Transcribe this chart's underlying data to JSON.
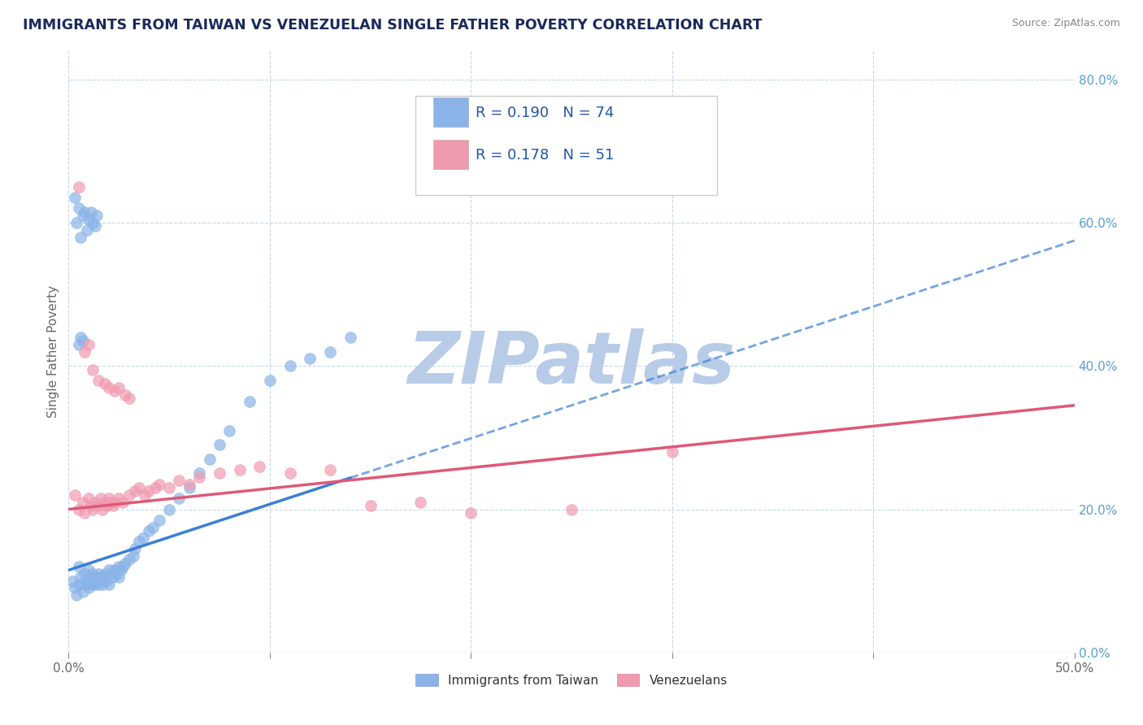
{
  "title": "IMMIGRANTS FROM TAIWAN VS VENEZUELAN SINGLE FATHER POVERTY CORRELATION CHART",
  "source": "Source: ZipAtlas.com",
  "ylabel": "Single Father Poverty",
  "xlim": [
    0.0,
    0.5
  ],
  "ylim": [
    0.0,
    0.84
  ],
  "xticks": [
    0.0,
    0.1,
    0.2,
    0.3,
    0.4,
    0.5
  ],
  "xtick_labels": [
    "0.0%",
    "",
    "",
    "",
    "",
    "50.0%"
  ],
  "yticks_right": [
    0.0,
    0.2,
    0.4,
    0.6,
    0.8
  ],
  "ytick_labels_right": [
    "0.0%",
    "20.0%",
    "40.0%",
    "60.0%",
    "80.0%"
  ],
  "taiwan_color": "#8ab4e8",
  "venezuela_color": "#f09ab0",
  "taiwan_line_color": "#3a7fd4",
  "venezuela_line_color": "#e05878",
  "watermark": "ZIPatlas",
  "watermark_color": "#b8cce8",
  "legend_label_taiwan": "Immigrants from Taiwan",
  "legend_label_venezuela": "Venezuelans",
  "background_color": "#ffffff",
  "grid_color": "#c8d8ec",
  "title_color": "#1a2a5a",
  "taiwan_R": "0.190",
  "taiwan_N": "74",
  "venezuela_R": "0.178",
  "venezuela_N": "51",
  "taiwan_scatter_x": [
    0.002,
    0.003,
    0.004,
    0.005,
    0.005,
    0.006,
    0.007,
    0.008,
    0.008,
    0.009,
    0.01,
    0.01,
    0.01,
    0.011,
    0.012,
    0.012,
    0.013,
    0.013,
    0.014,
    0.015,
    0.015,
    0.015,
    0.016,
    0.017,
    0.018,
    0.018,
    0.019,
    0.02,
    0.02,
    0.021,
    0.022,
    0.023,
    0.024,
    0.025,
    0.025,
    0.026,
    0.027,
    0.028,
    0.03,
    0.032,
    0.033,
    0.035,
    0.037,
    0.04,
    0.042,
    0.045,
    0.05,
    0.055,
    0.06,
    0.065,
    0.07,
    0.075,
    0.08,
    0.09,
    0.1,
    0.11,
    0.12,
    0.13,
    0.14,
    0.003,
    0.004,
    0.005,
    0.006,
    0.007,
    0.008,
    0.009,
    0.01,
    0.011,
    0.012,
    0.013,
    0.014,
    0.005,
    0.006,
    0.007
  ],
  "taiwan_scatter_y": [
    0.1,
    0.09,
    0.08,
    0.12,
    0.095,
    0.105,
    0.085,
    0.11,
    0.095,
    0.1,
    0.115,
    0.09,
    0.095,
    0.105,
    0.095,
    0.11,
    0.1,
    0.095,
    0.105,
    0.11,
    0.095,
    0.1,
    0.105,
    0.095,
    0.105,
    0.11,
    0.1,
    0.115,
    0.095,
    0.11,
    0.105,
    0.115,
    0.11,
    0.12,
    0.105,
    0.115,
    0.12,
    0.125,
    0.13,
    0.135,
    0.145,
    0.155,
    0.16,
    0.17,
    0.175,
    0.185,
    0.2,
    0.215,
    0.23,
    0.25,
    0.27,
    0.29,
    0.31,
    0.35,
    0.38,
    0.4,
    0.41,
    0.42,
    0.44,
    0.635,
    0.6,
    0.62,
    0.58,
    0.61,
    0.615,
    0.59,
    0.605,
    0.615,
    0.6,
    0.595,
    0.61,
    0.43,
    0.44,
    0.435
  ],
  "venezuela_scatter_x": [
    0.003,
    0.005,
    0.007,
    0.008,
    0.01,
    0.011,
    0.012,
    0.013,
    0.015,
    0.016,
    0.017,
    0.018,
    0.019,
    0.02,
    0.021,
    0.022,
    0.023,
    0.025,
    0.027,
    0.03,
    0.033,
    0.035,
    0.038,
    0.04,
    0.043,
    0.045,
    0.05,
    0.055,
    0.06,
    0.065,
    0.075,
    0.085,
    0.095,
    0.11,
    0.13,
    0.15,
    0.175,
    0.2,
    0.25,
    0.3,
    0.005,
    0.008,
    0.01,
    0.012,
    0.015,
    0.018,
    0.02,
    0.023,
    0.025,
    0.028,
    0.03
  ],
  "venezuela_scatter_y": [
    0.22,
    0.2,
    0.21,
    0.195,
    0.215,
    0.205,
    0.2,
    0.21,
    0.205,
    0.215,
    0.2,
    0.21,
    0.205,
    0.215,
    0.21,
    0.205,
    0.21,
    0.215,
    0.21,
    0.22,
    0.225,
    0.23,
    0.22,
    0.225,
    0.23,
    0.235,
    0.23,
    0.24,
    0.235,
    0.245,
    0.25,
    0.255,
    0.26,
    0.25,
    0.255,
    0.205,
    0.21,
    0.195,
    0.2,
    0.28,
    0.65,
    0.42,
    0.43,
    0.395,
    0.38,
    0.375,
    0.37,
    0.365,
    0.37,
    0.36,
    0.355
  ],
  "tw_line_x0": 0.0,
  "tw_line_x1": 0.5,
  "tw_line_y0": 0.115,
  "tw_line_y1": 0.575,
  "vz_line_x0": 0.0,
  "vz_line_x1": 0.5,
  "vz_line_y0": 0.2,
  "vz_line_y1": 0.345
}
